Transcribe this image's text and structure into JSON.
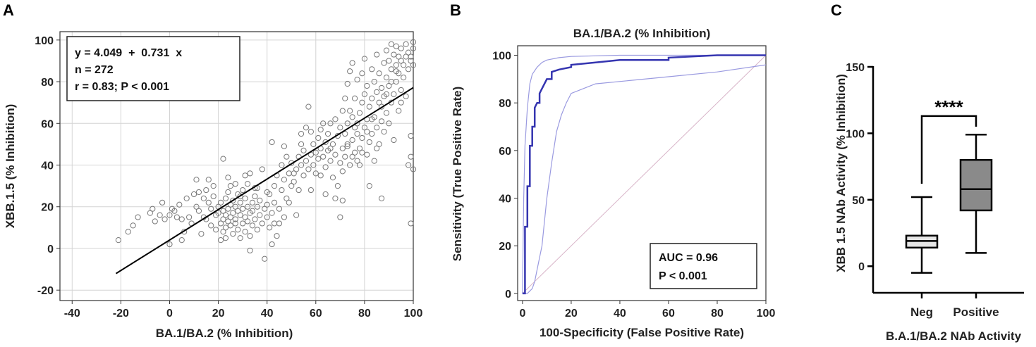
{
  "chart_data": [
    {
      "panel_label": "A",
      "type": "scatter",
      "title": "",
      "xlabel": "BA.1/BA.2 (% Inhibition)",
      "ylabel": "XBB.1.5 (% Inhibition)",
      "xlim": [
        -45,
        100
      ],
      "ylim": [
        -25,
        104
      ],
      "xticks": [
        -40,
        -20,
        0,
        20,
        40,
        60,
        80,
        100
      ],
      "yticks": [
        -20,
        0,
        20,
        40,
        60,
        80,
        100
      ],
      "grid": true,
      "regression": {
        "intercept": 4.049,
        "slope": 0.731,
        "x_range": [
          -22,
          100
        ]
      },
      "stats_lines": [
        "y = 4.049  +  0.731  x",
        "n = 272",
        "r = 0.83; P < 0.001"
      ],
      "points_n": 272,
      "points": [
        [
          -21,
          4
        ],
        [
          -17,
          8
        ],
        [
          -15,
          11
        ],
        [
          -13,
          15
        ],
        [
          -8,
          17
        ],
        [
          -7,
          19
        ],
        [
          -6,
          13
        ],
        [
          -4,
          16
        ],
        [
          -3,
          22
        ],
        [
          -2,
          14
        ],
        [
          0,
          2
        ],
        [
          0,
          16
        ],
        [
          1,
          19
        ],
        [
          2,
          18
        ],
        [
          3,
          15
        ],
        [
          4,
          21
        ],
        [
          5,
          14
        ],
        [
          6,
          8
        ],
        [
          7,
          24
        ],
        [
          8,
          15
        ],
        [
          9,
          12
        ],
        [
          10,
          26
        ],
        [
          11,
          33
        ],
        [
          11,
          20
        ],
        [
          12,
          18
        ],
        [
          13,
          7
        ],
        [
          14,
          15
        ],
        [
          14,
          24
        ],
        [
          15,
          14
        ],
        [
          15,
          28
        ],
        [
          16,
          22
        ],
        [
          17,
          11
        ],
        [
          17,
          19
        ],
        [
          18,
          25
        ],
        [
          18,
          30
        ],
        [
          19,
          9
        ],
        [
          19,
          16
        ],
        [
          20,
          17
        ],
        [
          20,
          20
        ],
        [
          21,
          4
        ],
        [
          21,
          12
        ],
        [
          21,
          22
        ],
        [
          22,
          8
        ],
        [
          22,
          14
        ],
        [
          22,
          18
        ],
        [
          22,
          43
        ],
        [
          23,
          5
        ],
        [
          23,
          10
        ],
        [
          23,
          16
        ],
        [
          23,
          24
        ],
        [
          24,
          13
        ],
        [
          24,
          19
        ],
        [
          24,
          27
        ],
        [
          25,
          11
        ],
        [
          25,
          15
        ],
        [
          25,
          21
        ],
        [
          25,
          30
        ],
        [
          26,
          7
        ],
        [
          26,
          17
        ],
        [
          26,
          23
        ],
        [
          27,
          12
        ],
        [
          27,
          20
        ],
        [
          27,
          14
        ],
        [
          28,
          9
        ],
        [
          28,
          18
        ],
        [
          28,
          26
        ],
        [
          29,
          5
        ],
        [
          29,
          16
        ],
        [
          29,
          22
        ],
        [
          30,
          12
        ],
        [
          30,
          19
        ],
        [
          30,
          28
        ],
        [
          31,
          8
        ],
        [
          31,
          15
        ],
        [
          31,
          24
        ],
        [
          32,
          13
        ],
        [
          32,
          20
        ],
        [
          32,
          31
        ],
        [
          33,
          -1
        ],
        [
          33,
          6
        ],
        [
          33,
          17
        ],
        [
          33,
          36
        ],
        [
          34,
          11
        ],
        [
          34,
          22
        ],
        [
          34,
          18
        ],
        [
          35,
          14
        ],
        [
          35,
          25
        ],
        [
          36,
          9
        ],
        [
          36,
          20
        ],
        [
          36,
          29
        ],
        [
          37,
          16
        ],
        [
          37,
          23
        ],
        [
          38,
          12
        ],
        [
          38,
          38
        ],
        [
          39,
          -5
        ],
        [
          39,
          19
        ],
        [
          40,
          21
        ],
        [
          40,
          15
        ],
        [
          41,
          10
        ],
        [
          41,
          26
        ],
        [
          42,
          2
        ],
        [
          42,
          17
        ],
        [
          42,
          51
        ],
        [
          43,
          22
        ],
        [
          43,
          30
        ],
        [
          44,
          6
        ],
        [
          44,
          35
        ],
        [
          45,
          12
        ],
        [
          45,
          19
        ],
        [
          46,
          28
        ],
        [
          46,
          40
        ],
        [
          47,
          15
        ],
        [
          47,
          33
        ],
        [
          48,
          24
        ],
        [
          48,
          44
        ],
        [
          49,
          36
        ],
        [
          50,
          30
        ],
        [
          50,
          41
        ],
        [
          51,
          32
        ],
        [
          52,
          38
        ],
        [
          52,
          16
        ],
        [
          53,
          44
        ],
        [
          53,
          28
        ],
        [
          54,
          40
        ],
        [
          54,
          50
        ],
        [
          55,
          35
        ],
        [
          55,
          47
        ],
        [
          56,
          42
        ],
        [
          56,
          58
        ],
        [
          57,
          38
        ],
        [
          57,
          68
        ],
        [
          58,
          45
        ],
        [
          58,
          56
        ],
        [
          59,
          40
        ],
        [
          59,
          50
        ],
        [
          60,
          46
        ],
        [
          60,
          36
        ],
        [
          61,
          43
        ],
        [
          61,
          53
        ],
        [
          62,
          48
        ],
        [
          62,
          57
        ],
        [
          63,
          44
        ],
        [
          63,
          60
        ],
        [
          64,
          39
        ],
        [
          64,
          51
        ],
        [
          65,
          47
        ],
        [
          65,
          55
        ],
        [
          66,
          42
        ],
        [
          66,
          60
        ],
        [
          67,
          34
        ],
        [
          67,
          50
        ],
        [
          68,
          45
        ],
        [
          68,
          62
        ],
        [
          69,
          30
        ],
        [
          69,
          54
        ],
        [
          70,
          15
        ],
        [
          70,
          41
        ],
        [
          70,
          58
        ],
        [
          71,
          23
        ],
        [
          71,
          48
        ],
        [
          71,
          66
        ],
        [
          72,
          44
        ],
        [
          72,
          55
        ],
        [
          72,
          72
        ],
        [
          73,
          50
        ],
        [
          73,
          60
        ],
        [
          73,
          79
        ],
        [
          74,
          40
        ],
        [
          74,
          66
        ],
        [
          74,
          85
        ],
        [
          75,
          52
        ],
        [
          75,
          63
        ],
        [
          75,
          89
        ],
        [
          76,
          46
        ],
        [
          76,
          58
        ],
        [
          76,
          72
        ],
        [
          77,
          42
        ],
        [
          77,
          55
        ],
        [
          77,
          81
        ],
        [
          78,
          48
        ],
        [
          78,
          65
        ],
        [
          78,
          40
        ],
        [
          79,
          53
        ],
        [
          79,
          70
        ],
        [
          79,
          84
        ],
        [
          80,
          58
        ],
        [
          80,
          74
        ],
        [
          80,
          91
        ],
        [
          81,
          45
        ],
        [
          81,
          62
        ],
        [
          81,
          78
        ],
        [
          82,
          51
        ],
        [
          82,
          30
        ],
        [
          82,
          68
        ],
        [
          83,
          55
        ],
        [
          83,
          72
        ],
        [
          83,
          86
        ],
        [
          84,
          42
        ],
        [
          84,
          63
        ],
        [
          84,
          80
        ],
        [
          85,
          58
        ],
        [
          85,
          75
        ],
        [
          85,
          93
        ],
        [
          86,
          50
        ],
        [
          86,
          70
        ],
        [
          86,
          84
        ],
        [
          87,
          61
        ],
        [
          87,
          77
        ],
        [
          87,
          24
        ],
        [
          88,
          56
        ],
        [
          88,
          73
        ],
        [
          88,
          89
        ],
        [
          89,
          65
        ],
        [
          89,
          82
        ],
        [
          89,
          95
        ],
        [
          90,
          60
        ],
        [
          90,
          78
        ],
        [
          90,
          90
        ],
        [
          91,
          70
        ],
        [
          91,
          86
        ],
        [
          91,
          98
        ],
        [
          92,
          52
        ],
        [
          92,
          74
        ],
        [
          92,
          93
        ],
        [
          93,
          80
        ],
        [
          93,
          88
        ],
        [
          93,
          97
        ],
        [
          94,
          66
        ],
        [
          94,
          84
        ],
        [
          94,
          92
        ],
        [
          95,
          76
        ],
        [
          95,
          90
        ],
        [
          95,
          96
        ],
        [
          96,
          82
        ],
        [
          96,
          88
        ],
        [
          97,
          73
        ],
        [
          97,
          92
        ],
        [
          97,
          98
        ],
        [
          98,
          86
        ],
        [
          98,
          94
        ],
        [
          98,
          40
        ],
        [
          99,
          54
        ],
        [
          99,
          90
        ],
        [
          99,
          12
        ],
        [
          99,
          44
        ],
        [
          100,
          38
        ],
        [
          100,
          96
        ],
        [
          100,
          88
        ],
        [
          100,
          99
        ],
        [
          99,
          92
        ],
        [
          5,
          4
        ],
        [
          12,
          27
        ],
        [
          16,
          33
        ],
        [
          24,
          34
        ],
        [
          27,
          31
        ],
        [
          29,
          25
        ],
        [
          31,
          35
        ],
        [
          35,
          29
        ],
        [
          40,
          27
        ],
        [
          43,
          12
        ],
        [
          47,
          49
        ],
        [
          49,
          22
        ],
        [
          51,
          36
        ],
        [
          54,
          55
        ],
        [
          58,
          28
        ],
        [
          62,
          35
        ],
        [
          64,
          26
        ],
        [
          66,
          48
        ],
        [
          68,
          24
        ],
        [
          71,
          37
        ],
        [
          73,
          49
        ],
        [
          75,
          44
        ],
        [
          77,
          60
        ],
        [
          79,
          46
        ],
        [
          81,
          56
        ],
        [
          83,
          62
        ],
        [
          85,
          48
        ],
        [
          87,
          68
        ],
        [
          89,
          74
        ],
        [
          91,
          80
        ],
        [
          93,
          85
        ],
        [
          95,
          70
        ]
      ]
    },
    {
      "panel_label": "B",
      "type": "line",
      "title": "BA.1/BA.2 (% Inhibition)",
      "xlabel": "100-Specificity (False Positive Rate)",
      "ylabel": "Sensitivity (True Positive Rate)",
      "xlim": [
        -2,
        100
      ],
      "ylim": [
        -3,
        104
      ],
      "xticks": [
        0,
        20,
        40,
        60,
        80,
        100
      ],
      "yticks": [
        0,
        20,
        40,
        60,
        80,
        100
      ],
      "grid": false,
      "series": [
        {
          "name": "ROC",
          "x": [
            0,
            1,
            1,
            2,
            2,
            3,
            3,
            4,
            4,
            5,
            5,
            6,
            7,
            7,
            8,
            9,
            10,
            12,
            12,
            15,
            20,
            20,
            30,
            40,
            60,
            60,
            80,
            100
          ],
          "y": [
            0,
            0,
            28,
            28,
            45,
            45,
            62,
            62,
            70,
            70,
            78,
            80,
            80,
            84,
            86,
            88,
            90,
            90,
            93,
            94,
            95,
            96,
            97,
            98,
            98,
            99,
            100,
            100
          ]
        },
        {
          "name": "CI upper",
          "x": [
            0,
            0.5,
            1,
            2,
            3,
            4,
            6,
            8,
            10,
            15,
            20,
            40,
            60,
            100
          ],
          "y": [
            0,
            40,
            62,
            78,
            88,
            92,
            95,
            97,
            98,
            99,
            99.5,
            100,
            100,
            100
          ]
        },
        {
          "name": "CI lower",
          "x": [
            0,
            2,
            4,
            5,
            6,
            8,
            10,
            12,
            14,
            16,
            18,
            20,
            30,
            50,
            60,
            80,
            100
          ],
          "y": [
            0,
            0,
            2,
            5,
            10,
            20,
            40,
            55,
            68,
            75,
            80,
            84,
            88,
            90,
            91,
            93,
            96
          ]
        },
        {
          "name": "Diagonal",
          "x": [
            0,
            100
          ],
          "y": [
            0,
            100
          ]
        }
      ],
      "stats_lines": [
        "AUC = 0.96",
        "P < 0.001"
      ]
    },
    {
      "panel_label": "C",
      "type": "box",
      "title": "",
      "xlabel": "B.A.1/BA.2 NAb Activity",
      "ylabel": "XBB 1.5 NAb Activity (% Inhibition)",
      "ylim": [
        -20,
        150
      ],
      "yticks": [
        0,
        50,
        100,
        150
      ],
      "categories": [
        "Neg",
        "Positive"
      ],
      "boxes": [
        {
          "name": "Neg",
          "min": -5,
          "q1": 14,
          "median": 19,
          "q3": 23,
          "max": 52
        },
        {
          "name": "Positive",
          "min": 10,
          "q1": 42,
          "median": 58,
          "q3": 80,
          "max": 99
        }
      ],
      "significance": "****"
    }
  ]
}
